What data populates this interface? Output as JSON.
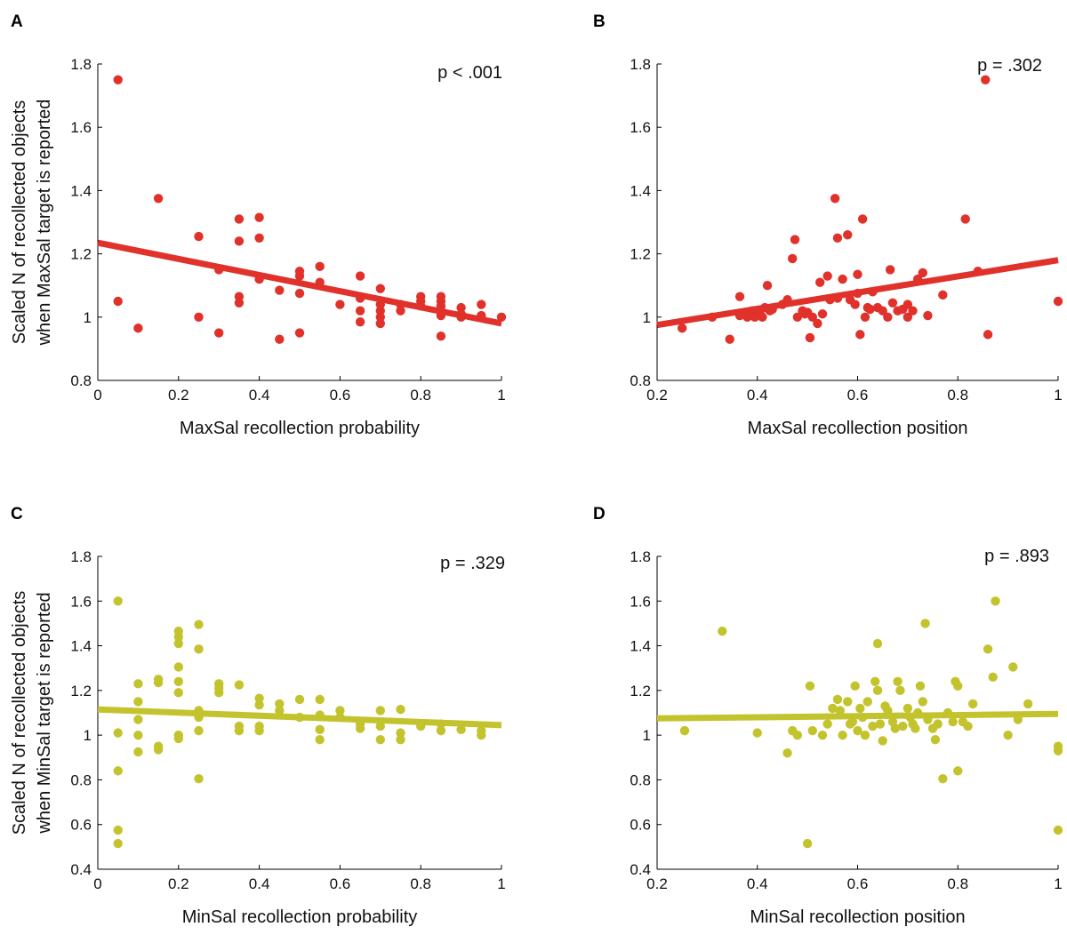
{
  "chart_data": [
    {
      "panel": "A",
      "type": "scatter",
      "color": "#e0312b",
      "annotation": "p < .001",
      "xlabel": "MaxSal recollection probability",
      "ylabel": [
        "Scaled N of recollected objects",
        "when MaxSal target is reported"
      ],
      "xlim": [
        0,
        1
      ],
      "ylim": [
        0.8,
        1.8
      ],
      "xticks": [
        "0",
        "0.2",
        "0.4",
        "0.6",
        "0.8",
        "1"
      ],
      "yticks": [
        "0.8",
        "1",
        "1.2",
        "1.4",
        "1.6",
        "1.8"
      ],
      "fit": {
        "x": [
          0,
          1
        ],
        "y": [
          1.235,
          0.98
        ]
      },
      "points": [
        [
          0.05,
          1.75
        ],
        [
          0.05,
          1.05
        ],
        [
          0.1,
          0.965
        ],
        [
          0.15,
          1.375
        ],
        [
          0.25,
          1.255
        ],
        [
          0.25,
          1.0
        ],
        [
          0.3,
          1.15
        ],
        [
          0.3,
          0.95
        ],
        [
          0.35,
          1.31
        ],
        [
          0.35,
          1.24
        ],
        [
          0.35,
          1.065
        ],
        [
          0.35,
          1.045
        ],
        [
          0.4,
          1.315
        ],
        [
          0.4,
          1.25
        ],
        [
          0.4,
          1.12
        ],
        [
          0.45,
          1.085
        ],
        [
          0.45,
          0.93
        ],
        [
          0.5,
          1.145
        ],
        [
          0.5,
          1.13
        ],
        [
          0.5,
          1.075
        ],
        [
          0.5,
          0.95
        ],
        [
          0.55,
          1.16
        ],
        [
          0.55,
          1.11
        ],
        [
          0.6,
          1.04
        ],
        [
          0.65,
          1.13
        ],
        [
          0.65,
          1.06
        ],
        [
          0.65,
          1.02
        ],
        [
          0.65,
          0.985
        ],
        [
          0.7,
          1.09
        ],
        [
          0.7,
          1.04
        ],
        [
          0.7,
          1.02
        ],
        [
          0.7,
          1.0
        ],
        [
          0.7,
          0.98
        ],
        [
          0.75,
          1.04
        ],
        [
          0.75,
          1.02
        ],
        [
          0.8,
          1.065
        ],
        [
          0.8,
          1.05
        ],
        [
          0.8,
          1.035
        ],
        [
          0.85,
          1.065
        ],
        [
          0.85,
          1.05
        ],
        [
          0.85,
          1.035
        ],
        [
          0.85,
          1.02
        ],
        [
          0.85,
          1.005
        ],
        [
          0.85,
          0.94
        ],
        [
          0.9,
          1.03
        ],
        [
          0.9,
          1.01
        ],
        [
          0.9,
          1.0
        ],
        [
          0.95,
          1.04
        ],
        [
          0.95,
          1.005
        ],
        [
          1.0,
          1.0
        ]
      ]
    },
    {
      "panel": "B",
      "type": "scatter",
      "color": "#e0312b",
      "annotation": "p = .302",
      "xlabel": "MaxSal recollection position",
      "ylabel": null,
      "xlim": [
        0.2,
        1
      ],
      "ylim": [
        0.8,
        1.8
      ],
      "xticks": [
        "0.2",
        "0.4",
        "0.6",
        "0.8",
        "1"
      ],
      "yticks": [
        "0.8",
        "1",
        "1.2",
        "1.4",
        "1.6",
        "1.8"
      ],
      "fit": {
        "x": [
          0.2,
          1
        ],
        "y": [
          0.975,
          1.18
        ]
      },
      "points": [
        [
          0.25,
          0.965
        ],
        [
          0.31,
          1.0
        ],
        [
          0.345,
          0.93
        ],
        [
          0.365,
          1.065
        ],
        [
          0.365,
          1.005
        ],
        [
          0.375,
          1.015
        ],
        [
          0.38,
          1.0
        ],
        [
          0.385,
          1.005
        ],
        [
          0.39,
          1.02
        ],
        [
          0.395,
          1.0
        ],
        [
          0.4,
          1.02
        ],
        [
          0.405,
          1.01
        ],
        [
          0.41,
          1.0
        ],
        [
          0.415,
          1.03
        ],
        [
          0.42,
          1.1
        ],
        [
          0.425,
          1.02
        ],
        [
          0.43,
          1.025
        ],
        [
          0.45,
          1.04
        ],
        [
          0.46,
          1.055
        ],
        [
          0.47,
          1.185
        ],
        [
          0.475,
          1.245
        ],
        [
          0.48,
          1.0
        ],
        [
          0.49,
          1.02
        ],
        [
          0.495,
          1.01
        ],
        [
          0.5,
          1.015
        ],
        [
          0.505,
          0.935
        ],
        [
          0.51,
          1.0
        ],
        [
          0.52,
          0.98
        ],
        [
          0.525,
          1.11
        ],
        [
          0.53,
          1.01
        ],
        [
          0.54,
          1.13
        ],
        [
          0.545,
          1.055
        ],
        [
          0.555,
          1.375
        ],
        [
          0.56,
          1.06
        ],
        [
          0.56,
          1.25
        ],
        [
          0.57,
          1.12
        ],
        [
          0.58,
          1.26
        ],
        [
          0.585,
          1.055
        ],
        [
          0.595,
          1.04
        ],
        [
          0.6,
          1.135
        ],
        [
          0.6,
          1.075
        ],
        [
          0.605,
          0.945
        ],
        [
          0.61,
          1.31
        ],
        [
          0.615,
          1.0
        ],
        [
          0.62,
          1.03
        ],
        [
          0.625,
          1.025
        ],
        [
          0.63,
          1.08
        ],
        [
          0.64,
          1.03
        ],
        [
          0.65,
          1.02
        ],
        [
          0.66,
          1.0
        ],
        [
          0.665,
          1.15
        ],
        [
          0.67,
          1.045
        ],
        [
          0.68,
          1.02
        ],
        [
          0.69,
          1.025
        ],
        [
          0.7,
          1.04
        ],
        [
          0.7,
          1.0
        ],
        [
          0.71,
          1.02
        ],
        [
          0.72,
          1.12
        ],
        [
          0.73,
          1.14
        ],
        [
          0.74,
          1.005
        ],
        [
          0.77,
          1.07
        ],
        [
          0.815,
          1.31
        ],
        [
          0.84,
          1.145
        ],
        [
          0.855,
          1.75
        ],
        [
          0.86,
          0.945
        ],
        [
          1.0,
          1.05
        ]
      ]
    },
    {
      "panel": "C",
      "type": "scatter",
      "color": "#c3c42d",
      "annotation": "p = .329",
      "xlabel": "MinSal recollection probability",
      "ylabel": [
        "Scaled N of recollected objects",
        "when MinSal target is reported"
      ],
      "xlim": [
        0,
        1
      ],
      "ylim": [
        0.4,
        1.8
      ],
      "xticks": [
        "0",
        "0.2",
        "0.4",
        "0.6",
        "0.8",
        "1"
      ],
      "yticks": [
        "0.4",
        "0.6",
        "0.8",
        "1",
        "1.2",
        "1.4",
        "1.6",
        "1.8"
      ],
      "fit": {
        "x": [
          0,
          1
        ],
        "y": [
          1.115,
          1.045
        ]
      },
      "points": [
        [
          0.05,
          1.6
        ],
        [
          0.05,
          1.01
        ],
        [
          0.05,
          0.84
        ],
        [
          0.05,
          0.575
        ],
        [
          0.05,
          0.515
        ],
        [
          0.1,
          1.23
        ],
        [
          0.1,
          1.15
        ],
        [
          0.1,
          1.07
        ],
        [
          0.1,
          1.0
        ],
        [
          0.1,
          0.925
        ],
        [
          0.15,
          1.25
        ],
        [
          0.15,
          1.235
        ],
        [
          0.15,
          0.95
        ],
        [
          0.15,
          0.935
        ],
        [
          0.2,
          1.465
        ],
        [
          0.2,
          1.44
        ],
        [
          0.2,
          1.41
        ],
        [
          0.2,
          1.305
        ],
        [
          0.2,
          1.24
        ],
        [
          0.2,
          1.19
        ],
        [
          0.2,
          1.0
        ],
        [
          0.2,
          0.985
        ],
        [
          0.25,
          1.495
        ],
        [
          0.25,
          1.385
        ],
        [
          0.25,
          1.11
        ],
        [
          0.25,
          1.08
        ],
        [
          0.25,
          1.02
        ],
        [
          0.25,
          0.805
        ],
        [
          0.3,
          1.23
        ],
        [
          0.3,
          1.21
        ],
        [
          0.3,
          1.19
        ],
        [
          0.35,
          1.225
        ],
        [
          0.35,
          1.04
        ],
        [
          0.35,
          1.02
        ],
        [
          0.4,
          1.165
        ],
        [
          0.4,
          1.135
        ],
        [
          0.4,
          1.04
        ],
        [
          0.4,
          1.02
        ],
        [
          0.45,
          1.14
        ],
        [
          0.45,
          1.11
        ],
        [
          0.5,
          1.16
        ],
        [
          0.5,
          1.08
        ],
        [
          0.55,
          1.16
        ],
        [
          0.55,
          1.09
        ],
        [
          0.55,
          1.025
        ],
        [
          0.55,
          0.98
        ],
        [
          0.6,
          1.11
        ],
        [
          0.6,
          1.08
        ],
        [
          0.65,
          1.05
        ],
        [
          0.65,
          1.03
        ],
        [
          0.7,
          1.11
        ],
        [
          0.7,
          1.04
        ],
        [
          0.7,
          0.98
        ],
        [
          0.75,
          1.115
        ],
        [
          0.75,
          1.01
        ],
        [
          0.75,
          0.98
        ],
        [
          0.8,
          1.04
        ],
        [
          0.85,
          1.05
        ],
        [
          0.85,
          1.02
        ],
        [
          0.9,
          1.025
        ],
        [
          0.95,
          1.02
        ],
        [
          0.95,
          1.0
        ]
      ]
    },
    {
      "panel": "D",
      "type": "scatter",
      "color": "#c3c42d",
      "annotation": "p = .893",
      "xlabel": "MinSal recollection position",
      "ylabel": null,
      "xlim": [
        0.2,
        1
      ],
      "ylim": [
        0.4,
        1.8
      ],
      "xticks": [
        "0.2",
        "0.4",
        "0.6",
        "0.8",
        "1"
      ],
      "yticks": [
        "0.4",
        "0.6",
        "0.8",
        "1",
        "1.2",
        "1.4",
        "1.6",
        "1.8"
      ],
      "fit": {
        "x": [
          0.2,
          1
        ],
        "y": [
          1.075,
          1.095
        ]
      },
      "points": [
        [
          0.255,
          1.02
        ],
        [
          0.33,
          1.465
        ],
        [
          0.4,
          1.01
        ],
        [
          0.46,
          0.92
        ],
        [
          0.47,
          1.02
        ],
        [
          0.48,
          1.0
        ],
        [
          0.5,
          0.515
        ],
        [
          0.505,
          1.22
        ],
        [
          0.51,
          1.02
        ],
        [
          0.53,
          1.0
        ],
        [
          0.54,
          1.05
        ],
        [
          0.55,
          1.12
        ],
        [
          0.56,
          1.16
        ],
        [
          0.565,
          1.11
        ],
        [
          0.57,
          1.0
        ],
        [
          0.58,
          1.15
        ],
        [
          0.585,
          1.05
        ],
        [
          0.59,
          1.06
        ],
        [
          0.595,
          1.22
        ],
        [
          0.6,
          1.02
        ],
        [
          0.605,
          1.12
        ],
        [
          0.61,
          1.08
        ],
        [
          0.615,
          1.0
        ],
        [
          0.62,
          1.15
        ],
        [
          0.63,
          1.04
        ],
        [
          0.635,
          1.24
        ],
        [
          0.64,
          1.2
        ],
        [
          0.64,
          1.41
        ],
        [
          0.645,
          1.05
        ],
        [
          0.65,
          0.975
        ],
        [
          0.655,
          1.13
        ],
        [
          0.66,
          1.11
        ],
        [
          0.67,
          1.06
        ],
        [
          0.675,
          1.03
        ],
        [
          0.68,
          1.24
        ],
        [
          0.685,
          1.2
        ],
        [
          0.69,
          1.04
        ],
        [
          0.7,
          1.12
        ],
        [
          0.705,
          1.08
        ],
        [
          0.71,
          1.05
        ],
        [
          0.715,
          1.03
        ],
        [
          0.72,
          1.1
        ],
        [
          0.725,
          1.22
        ],
        [
          0.73,
          1.15
        ],
        [
          0.735,
          1.5
        ],
        [
          0.74,
          1.07
        ],
        [
          0.75,
          1.03
        ],
        [
          0.755,
          0.98
        ],
        [
          0.76,
          1.05
        ],
        [
          0.77,
          0.805
        ],
        [
          0.78,
          1.1
        ],
        [
          0.79,
          1.06
        ],
        [
          0.795,
          1.24
        ],
        [
          0.8,
          1.22
        ],
        [
          0.8,
          0.84
        ],
        [
          0.81,
          1.06
        ],
        [
          0.82,
          1.04
        ],
        [
          0.83,
          1.14
        ],
        [
          0.86,
          1.385
        ],
        [
          0.87,
          1.26
        ],
        [
          0.875,
          1.6
        ],
        [
          0.9,
          1.0
        ],
        [
          0.91,
          1.305
        ],
        [
          0.92,
          1.07
        ],
        [
          0.94,
          1.14
        ],
        [
          1.0,
          0.95
        ],
        [
          1.0,
          0.93
        ],
        [
          1.0,
          0.575
        ]
      ]
    }
  ]
}
